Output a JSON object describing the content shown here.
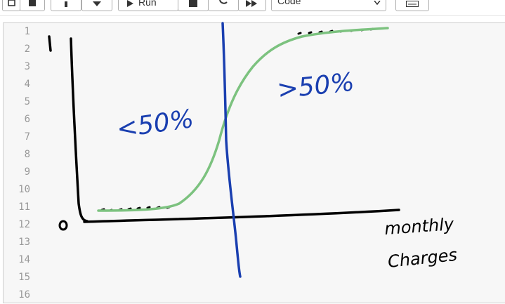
{
  "toolbar": {
    "run_label": "Run",
    "cell_type": "Code"
  },
  "editor": {
    "line_numbers": [
      "1",
      "2",
      "3",
      "4",
      "5",
      "6",
      "7",
      "8",
      "9",
      "10",
      "11",
      "12",
      "13",
      "14",
      "15",
      "16"
    ]
  },
  "sketch": {
    "y_top_label": "1",
    "y_zero_label": "0",
    "left_annotation": "<50%",
    "right_annotation": ">50%",
    "x_axis_label_line1": "monthly",
    "x_axis_label_line2": "Charges",
    "colors": {
      "axis": "#000000",
      "curve": "#7cc27f",
      "threshold": "#1a3fb0",
      "annotation": "#1a3fb0"
    }
  }
}
